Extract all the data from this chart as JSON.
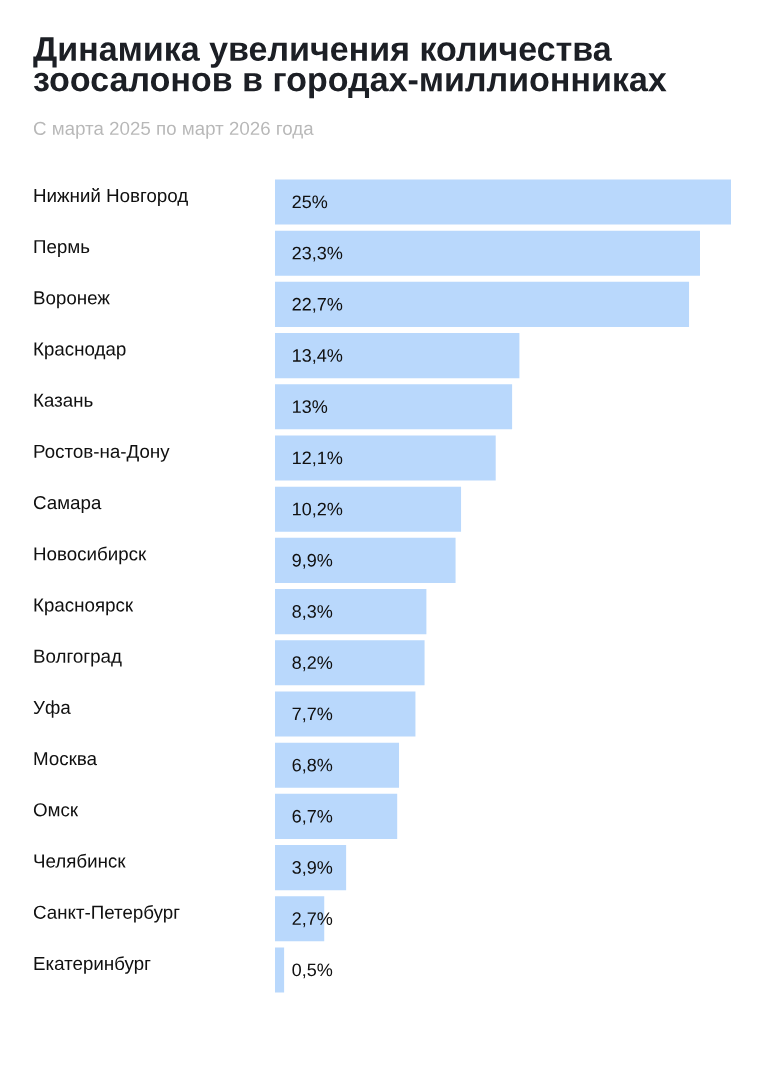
{
  "chart_data": {
    "type": "bar",
    "orientation": "horizontal",
    "title": "Динамика увеличения количества зоосалонов в городах-миллионниках",
    "subtitle": "С марта 2025 по март 2026 года",
    "categories": [
      "Нижний Новгород",
      "Пермь",
      "Воронеж",
      "Краснодар",
      "Казань",
      "Ростов-на-Дону",
      "Самара",
      "Новосибирск",
      "Красноярск",
      "Волгоград",
      "Уфа",
      "Москва",
      "Омск",
      "Челябинск",
      "Санкт-Петербург",
      "Екатеринбург"
    ],
    "values": [
      25,
      23.3,
      22.7,
      13.4,
      13,
      12.1,
      10.2,
      9.9,
      8.3,
      8.2,
      7.7,
      6.8,
      6.7,
      3.9,
      2.7,
      0.5
    ],
    "value_labels": [
      "25%",
      "23,3%",
      "22,7%",
      "13,4%",
      "13%",
      "12,1%",
      "10,2%",
      "9,9%",
      "8,3%",
      "8,2%",
      "7,7%",
      "6,8%",
      "6,7%",
      "3,9%",
      "2,7%",
      "0,5%"
    ],
    "color": "#b9d8fc",
    "xlim": [
      0,
      25
    ],
    "tick_labels": "y"
  }
}
